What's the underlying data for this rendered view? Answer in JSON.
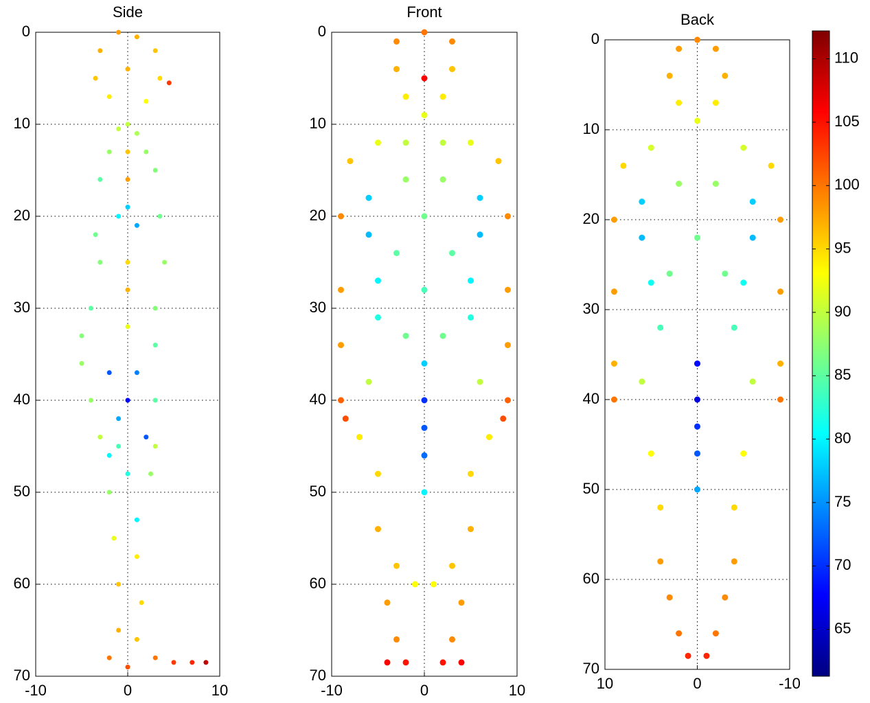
{
  "chart_data": [
    {
      "type": "scatter",
      "title": "Side",
      "colormap": "jet",
      "grid": true,
      "xlim": [
        -10,
        10
      ],
      "ylim": [
        0,
        70
      ],
      "xticks": [
        -10,
        0,
        10
      ],
      "yticks": [
        0,
        10,
        20,
        30,
        40,
        50,
        60,
        70
      ],
      "x": [
        -3,
        -1,
        1,
        3,
        3.5,
        -3.5,
        -2,
        2,
        0,
        4.5,
        0,
        1,
        -1,
        -2,
        0,
        2,
        3,
        -3,
        0,
        0,
        -1,
        1,
        3.5,
        -3.5,
        4,
        -3,
        0,
        0,
        -4,
        3,
        -5,
        0,
        3,
        -5,
        -2,
        1,
        0,
        -1,
        3,
        -4,
        2,
        -2,
        0,
        2.5,
        -2,
        1,
        -1.5,
        1,
        -1,
        1.5,
        -1,
        1,
        -2,
        0,
        3,
        5,
        7,
        8.5,
        -1,
        3,
        -3
      ],
      "y": [
        2,
        0,
        0.5,
        2,
        5,
        5,
        7,
        7.5,
        4,
        5.5,
        10,
        11,
        10.5,
        13,
        13,
        13,
        15,
        16,
        16,
        19,
        20,
        21,
        20,
        22,
        25,
        25,
        25,
        28,
        30,
        30,
        33,
        32,
        34,
        36,
        37,
        37,
        40,
        42,
        40,
        40,
        44,
        46,
        48,
        48,
        50,
        53,
        55,
        57,
        60,
        62,
        65,
        66,
        68,
        69,
        68,
        68.5,
        68.5,
        68.5,
        45,
        45,
        44
      ],
      "values": [
        97,
        98,
        97,
        96,
        95,
        96,
        94,
        93,
        97,
        103,
        90,
        89,
        90,
        88,
        96,
        88,
        87,
        85,
        98,
        78,
        80,
        76,
        86,
        86,
        88,
        87,
        95,
        97,
        85,
        87,
        87,
        92,
        85,
        88,
        72,
        74,
        68,
        76,
        85,
        88,
        72,
        80,
        82,
        88,
        88,
        80,
        92,
        94,
        96,
        95,
        97,
        96,
        100,
        102,
        100,
        103,
        104,
        109,
        84,
        90,
        90
      ]
    },
    {
      "type": "scatter",
      "title": "Front",
      "colormap": "jet",
      "grid": true,
      "xlim": [
        -10,
        10
      ],
      "ylim": [
        0,
        70
      ],
      "xticks": [
        -10,
        0,
        10
      ],
      "yticks": [
        0,
        10,
        20,
        30,
        40,
        50,
        60,
        70
      ],
      "x": [
        -3,
        0,
        3,
        -3,
        3,
        0,
        -2,
        2,
        0,
        -5,
        5,
        -8,
        8,
        -2,
        2,
        -9,
        9,
        -9,
        9,
        -9,
        9,
        -9,
        9,
        -8.5,
        8.5,
        -6,
        6,
        -6,
        6,
        -5,
        5,
        -5,
        5,
        -2,
        2,
        0,
        -3,
        3,
        0,
        -2,
        2,
        0,
        0,
        0,
        0,
        0,
        -6,
        6,
        -7,
        7,
        -5,
        5,
        -5,
        5,
        -3,
        3,
        -4,
        4,
        -3,
        3,
        -4,
        -2,
        2,
        4,
        -1,
        1
      ],
      "y": [
        1,
        0,
        1,
        4,
        4,
        5,
        7,
        7,
        9,
        12,
        12,
        14,
        14,
        12,
        12,
        20,
        20,
        28,
        28,
        34,
        34,
        40,
        40,
        42,
        42,
        18,
        18,
        22,
        22,
        27,
        27,
        31,
        31,
        16,
        16,
        20,
        24,
        24,
        28,
        33,
        33,
        36,
        40,
        43,
        46,
        50,
        38,
        38,
        44,
        44,
        48,
        48,
        54,
        54,
        58,
        58,
        62,
        62,
        66,
        66,
        68.5,
        68.5,
        68.5,
        68.5,
        60,
        60
      ],
      "values": [
        99,
        100,
        99,
        97,
        96,
        106,
        94,
        94,
        92,
        92,
        92,
        96,
        96,
        90,
        90,
        99,
        99,
        98,
        98,
        98,
        98,
        101,
        101,
        102,
        102,
        78,
        78,
        77,
        77,
        80,
        80,
        82,
        82,
        88,
        88,
        86,
        85,
        85,
        84,
        86,
        86,
        78,
        70,
        72,
        73,
        80,
        90,
        90,
        94,
        94,
        95,
        95,
        97,
        97,
        96,
        96,
        98,
        98,
        99,
        99,
        106,
        105,
        105,
        106,
        93,
        93
      ]
    },
    {
      "type": "scatter",
      "title": "Back",
      "colormap": "jet",
      "grid": true,
      "xlim": [
        10,
        -10
      ],
      "ylim": [
        0,
        70
      ],
      "xticks": [
        10,
        0,
        -10
      ],
      "yticks": [
        0,
        10,
        20,
        30,
        40,
        50,
        60,
        70
      ],
      "x": [
        -2,
        0,
        2,
        -3,
        3,
        -2,
        2,
        0,
        -5,
        5,
        -8,
        8,
        -9,
        9,
        -9,
        9,
        -9,
        9,
        -9,
        9,
        -6,
        6,
        -6,
        6,
        -5,
        5,
        -4,
        4,
        -2,
        2,
        0,
        -3,
        3,
        0,
        0,
        0,
        0,
        0,
        -6,
        6,
        -5,
        5,
        -4,
        4,
        -4,
        4,
        -3,
        3,
        -2,
        2,
        -1,
        1
      ],
      "y": [
        1,
        0,
        1,
        4,
        4,
        7,
        7,
        9,
        12,
        12,
        14,
        14,
        20,
        20,
        28,
        28,
        36,
        36,
        40,
        40,
        18,
        18,
        22,
        22,
        27,
        27,
        32,
        32,
        16,
        16,
        22,
        26,
        26,
        36,
        40,
        43,
        46,
        50,
        38,
        38,
        46,
        46,
        52,
        52,
        58,
        58,
        62,
        62,
        66,
        66,
        68.5,
        68.5
      ],
      "values": [
        98,
        99,
        98,
        97,
        97,
        94,
        94,
        92,
        91,
        91,
        95,
        95,
        98,
        98,
        98,
        98,
        97,
        97,
        100,
        100,
        78,
        78,
        77,
        77,
        81,
        81,
        84,
        84,
        88,
        88,
        86,
        86,
        86,
        68,
        66,
        70,
        72,
        76,
        90,
        90,
        93,
        93,
        95,
        95,
        98,
        98,
        99,
        99,
        100,
        100,
        104,
        104
      ]
    },
    {
      "type": "colorbar",
      "colormap": "jet",
      "clim": [
        61.3,
        112.2
      ],
      "ticks": [
        65,
        70,
        75,
        80,
        85,
        90,
        95,
        100,
        105,
        110
      ]
    }
  ]
}
